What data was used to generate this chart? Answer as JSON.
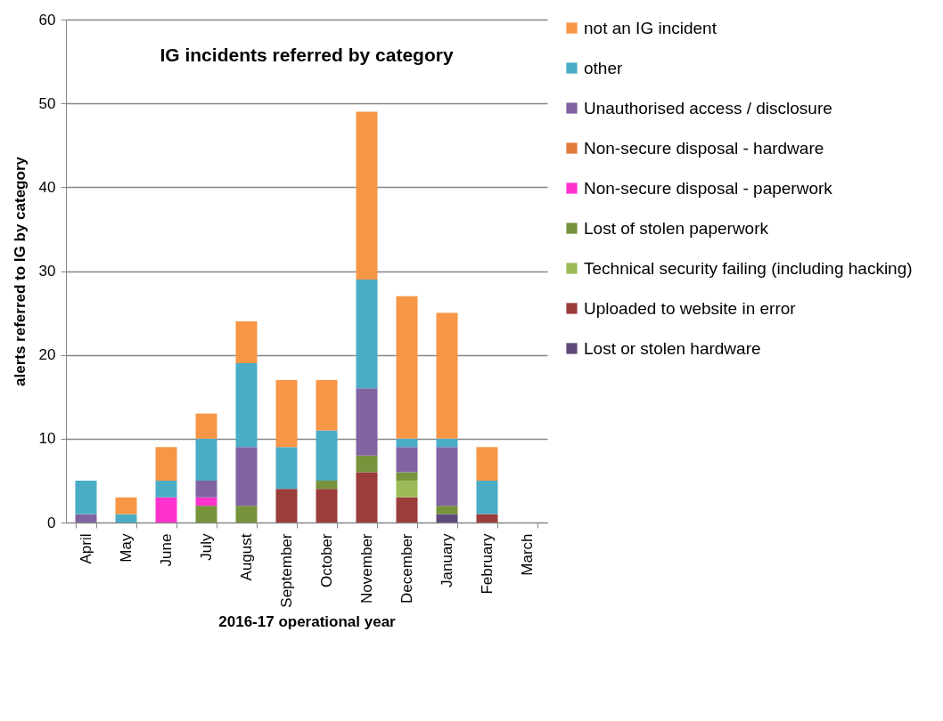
{
  "chart_data": {
    "type": "bar",
    "title": "IG incidents referred by category",
    "xlabel": "2016-17 operational year",
    "ylabel": "alerts referred to IG by category",
    "categories": [
      "April",
      "May",
      "June",
      "July",
      "August",
      "September",
      "October",
      "November",
      "December",
      "January",
      "February",
      "March"
    ],
    "stacked": true,
    "ylim": [
      0,
      60
    ],
    "yticks": [
      0,
      10,
      20,
      30,
      40,
      50,
      60
    ],
    "grid": "y",
    "legend": "right",
    "series": [
      {
        "name": "Lost or stolen hardware",
        "color": "#604a7b",
        "values": [
          null,
          null,
          null,
          null,
          null,
          null,
          null,
          null,
          null,
          1,
          null,
          null
        ]
      },
      {
        "name": "Uploaded to website in error",
        "color": "#9b3d3b",
        "values": [
          null,
          null,
          null,
          null,
          null,
          4,
          4,
          6,
          3,
          null,
          1,
          null
        ]
      },
      {
        "name": "Technical security failing (including hacking)",
        "color": "#9bbb59",
        "values": [
          null,
          null,
          null,
          null,
          null,
          null,
          null,
          null,
          2,
          null,
          null,
          null
        ]
      },
      {
        "name": "Lost of stolen paperwork",
        "color": "#77933c",
        "values": [
          null,
          null,
          null,
          2,
          2,
          null,
          1,
          2,
          1,
          1,
          null,
          null
        ]
      },
      {
        "name": "Non-secure disposal - paperwork",
        "color": "#ff33cc",
        "values": [
          null,
          null,
          3,
          1,
          null,
          null,
          null,
          null,
          null,
          null,
          null,
          null
        ]
      },
      {
        "name": "Non-secure disposal - hardware",
        "color": "#e07b39",
        "values": [
          null,
          null,
          null,
          null,
          null,
          null,
          null,
          null,
          null,
          null,
          null,
          null
        ]
      },
      {
        "name": "Unauthorised access / disclosure",
        "color": "#8064a2",
        "values": [
          1,
          null,
          null,
          2,
          7,
          null,
          null,
          8,
          3,
          7,
          null,
          null
        ]
      },
      {
        "name": "other",
        "color": "#4bacc6",
        "values": [
          4,
          1,
          2,
          5,
          10,
          5,
          6,
          13,
          1,
          1,
          4,
          null
        ]
      },
      {
        "name": "not an IG incident",
        "color": "#f79646",
        "values": [
          null,
          2,
          4,
          3,
          5,
          8,
          6,
          20,
          17,
          15,
          4,
          null
        ]
      }
    ]
  }
}
